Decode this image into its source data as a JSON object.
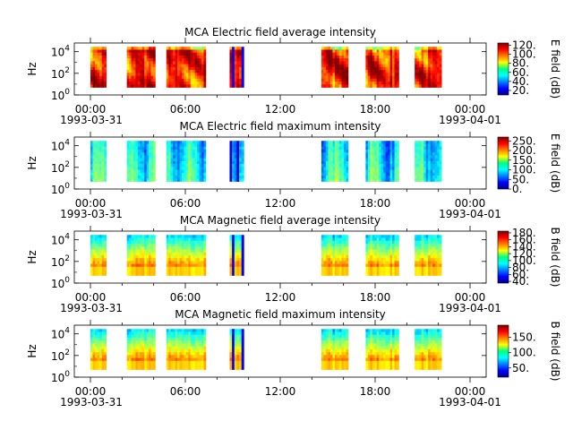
{
  "chart_data": [
    {
      "type": "heatmap",
      "title": "MCA  Electric field average intensity",
      "ylabel": "Hz",
      "y_ticks": [
        {
          "base": "10",
          "exp": "0"
        },
        {
          "base": "10",
          "exp": "2"
        },
        {
          "base": "10",
          "exp": "4"
        }
      ],
      "x_ticks": [
        "00:00",
        "06:00",
        "12:00",
        "18:00",
        "00:00"
      ],
      "x_start_date": "1993-03-31",
      "x_end_date": "1993-04-01",
      "colorbar": {
        "label": "E field (dB)",
        "ticks": [
          "120.",
          "100.",
          "80.",
          "60.",
          "40.",
          "20."
        ],
        "range": [
          10,
          125
        ]
      },
      "data_segments_hours": [
        [
          0.0,
          1.0
        ],
        [
          2.3,
          4.1
        ],
        [
          4.8,
          7.3
        ],
        [
          8.8,
          9.7
        ],
        [
          14.6,
          16.3
        ],
        [
          17.4,
          19.5
        ],
        [
          20.5,
          22.2
        ]
      ],
      "intensity_level": "high"
    },
    {
      "type": "heatmap",
      "title": "MCA  Electric field maximum intensity",
      "ylabel": "Hz",
      "y_ticks": [
        {
          "base": "10",
          "exp": "0"
        },
        {
          "base": "10",
          "exp": "2"
        },
        {
          "base": "10",
          "exp": "4"
        }
      ],
      "x_ticks": [
        "00:00",
        "06:00",
        "12:00",
        "18:00",
        "00:00"
      ],
      "x_start_date": "1993-03-31",
      "x_end_date": "1993-04-01",
      "colorbar": {
        "label": "E field (dB)",
        "ticks": [
          "250.",
          "200.",
          "150.",
          "100.",
          "50.",
          "0."
        ],
        "range": [
          0,
          270
        ]
      },
      "data_segments_hours": [
        [
          0.0,
          1.0
        ],
        [
          2.3,
          4.1
        ],
        [
          4.8,
          7.3
        ],
        [
          8.8,
          9.7
        ],
        [
          14.6,
          16.3
        ],
        [
          17.4,
          19.5
        ],
        [
          20.5,
          22.2
        ]
      ],
      "intensity_level": "low"
    },
    {
      "type": "heatmap",
      "title": "MCA  Magnetic field average intensity",
      "ylabel": "Hz",
      "y_ticks": [
        {
          "base": "10",
          "exp": "0"
        },
        {
          "base": "10",
          "exp": "2"
        },
        {
          "base": "10",
          "exp": "4"
        }
      ],
      "x_ticks": [
        "00:00",
        "06:00",
        "12:00",
        "18:00",
        "00:00"
      ],
      "x_start_date": "1993-03-31",
      "x_end_date": "1993-04-01",
      "colorbar": {
        "label": "B field (dB)",
        "ticks": [
          "180.",
          "160.",
          "140.",
          "120.",
          "100.",
          "80.",
          "60.",
          "40."
        ],
        "range": [
          35,
          185
        ]
      },
      "data_segments_hours": [
        [
          0.0,
          1.0
        ],
        [
          2.3,
          4.1
        ],
        [
          4.8,
          7.3
        ],
        [
          8.8,
          9.7
        ],
        [
          14.6,
          16.3
        ],
        [
          17.4,
          19.5
        ],
        [
          20.5,
          22.2
        ]
      ],
      "intensity_level": "banded"
    },
    {
      "type": "heatmap",
      "title": "MCA  Magnetic field maximum intensity",
      "ylabel": "Hz",
      "y_ticks": [
        {
          "base": "10",
          "exp": "0"
        },
        {
          "base": "10",
          "exp": "2"
        },
        {
          "base": "10",
          "exp": "4"
        }
      ],
      "x_ticks": [
        "00:00",
        "06:00",
        "12:00",
        "18:00",
        "00:00"
      ],
      "x_start_date": "1993-03-31",
      "x_end_date": "1993-04-01",
      "colorbar": {
        "label": "B field (dB)",
        "ticks": [
          "150.",
          "100.",
          "50."
        ],
        "range": [
          20,
          190
        ]
      },
      "data_segments_hours": [
        [
          0.0,
          1.0
        ],
        [
          2.3,
          4.1
        ],
        [
          4.8,
          7.3
        ],
        [
          8.8,
          9.7
        ],
        [
          14.6,
          16.3
        ],
        [
          17.4,
          19.5
        ],
        [
          20.5,
          22.2
        ]
      ],
      "intensity_level": "banded"
    }
  ]
}
